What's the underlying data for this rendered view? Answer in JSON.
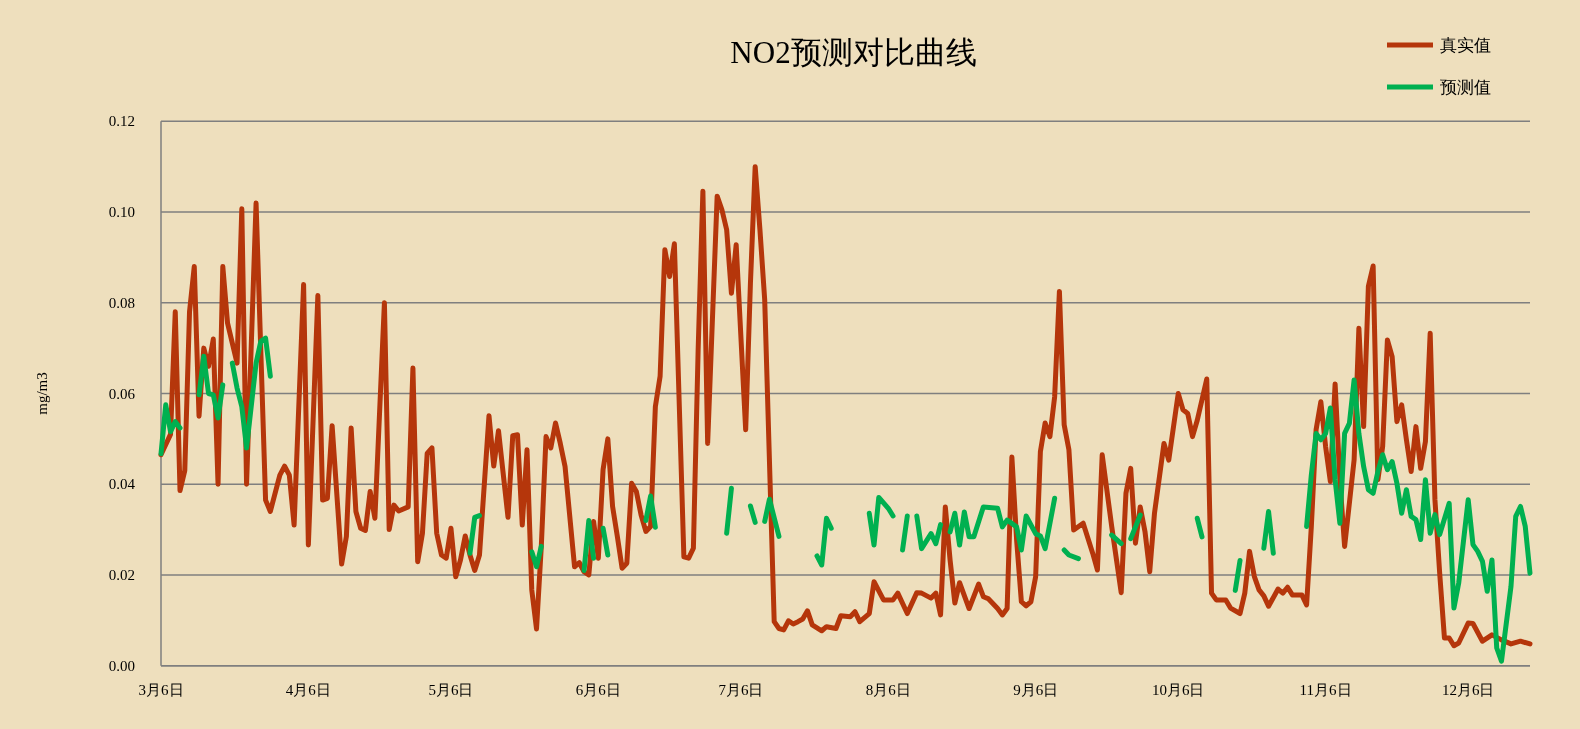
{
  "chart_data": {
    "type": "line",
    "title": "NO2预测对比曲线",
    "ylabel": "mg/m3",
    "grid": "y",
    "legend": "top right",
    "xlim": [
      "--03-06",
      "--12-19"
    ],
    "xticks": [
      {
        "value": "--03-06",
        "label": "3月6日"
      },
      {
        "value": "--04-06",
        "label": "4月6日"
      },
      {
        "value": "--05-06",
        "label": "5月6日"
      },
      {
        "value": "--06-06",
        "label": "6月6日"
      },
      {
        "value": "--07-06",
        "label": "7月6日"
      },
      {
        "value": "--08-06",
        "label": "8月6日"
      },
      {
        "value": "--09-06",
        "label": "9月6日"
      },
      {
        "value": "--10-06",
        "label": "10月6日"
      },
      {
        "value": "--11-06",
        "label": "11月6日"
      },
      {
        "value": "--12-06",
        "label": "12月6日"
      }
    ],
    "ylim": [
      0,
      0.12
    ],
    "yticks": [
      {
        "value": 0,
        "label": "0.00"
      },
      {
        "value": 0.02,
        "label": "0.02"
      },
      {
        "value": 0.04,
        "label": "0.04"
      },
      {
        "value": 0.06,
        "label": "0.06"
      },
      {
        "value": 0.08,
        "label": "0.08"
      },
      {
        "value": 0.1,
        "label": "0.10"
      },
      {
        "value": 0.12,
        "label": "0.12"
      }
    ],
    "series": [
      {
        "name": "真实值",
        "color": "#b5360b",
        "x": [
          "--03-06",
          "--03-08",
          "--03-09",
          "--03-10",
          "--03-11",
          "--03-12",
          "--03-13",
          "--03-14",
          "--03-15",
          "--03-16",
          "--03-17",
          "--03-18",
          "--03-19",
          "--03-20",
          "--03-22",
          "--03-23",
          "--03-24",
          "--03-26",
          "--03-28",
          "--03-29",
          "--03-31",
          "--04-01",
          "--04-02",
          "--04-03",
          "--04-05",
          "--04-06",
          "--04-08",
          "--04-09",
          "--04-10",
          "--04-11",
          "--04-13",
          "--04-14",
          "--04-15",
          "--04-16",
          "--04-17",
          "--04-18",
          "--04-19",
          "--04-20",
          "--04-22",
          "--04-23",
          "--04-24",
          "--04-25",
          "--04-27",
          "--04-28",
          "--04-29",
          "--04-30",
          "--05-01",
          "--05-02",
          "--05-03",
          "--05-04",
          "--05-05",
          "--05-06",
          "--05-07",
          "--05-08",
          "--05-09",
          "--05-10",
          "--05-11",
          "--05-12",
          "--05-14",
          "--05-15",
          "--05-16",
          "--05-18",
          "--05-19",
          "--05-20",
          "--05-21",
          "--05-22",
          "--05-23",
          "--05-24",
          "--05-25",
          "--05-26",
          "--05-27",
          "--05-28",
          "--05-29",
          "--05-30",
          "--06-01",
          "--06-02",
          "--06-03",
          "--06-04",
          "--06-05",
          "--06-06",
          "--06-07",
          "--06-08",
          "--06-09",
          "--06-10",
          "--06-11",
          "--06-12",
          "--06-13",
          "--06-14",
          "--06-15",
          "--06-16",
          "--06-17",
          "--06-18",
          "--06-19",
          "--06-20",
          "--06-21",
          "--06-22",
          "--06-24",
          "--06-25",
          "--06-26",
          "--06-27",
          "--06-28",
          "--06-29",
          "--07-01",
          "--07-02",
          "--07-03",
          "--07-04",
          "--07-05",
          "--07-07",
          "--07-08",
          "--07-09",
          "--07-10",
          "--07-11",
          "--07-13",
          "--07-14",
          "--07-15",
          "--07-16",
          "--07-17",
          "--07-18",
          "--07-19",
          "--07-20",
          "--07-21",
          "--07-23",
          "--07-24",
          "--07-26",
          "--07-27",
          "--07-29",
          "--07-30",
          "--07-31",
          "--08-02",
          "--08-03",
          "--08-05",
          "--08-07",
          "--08-08",
          "--08-10",
          "--08-12",
          "--08-13",
          "--08-15",
          "--08-16",
          "--08-17",
          "--08-18",
          "--08-19",
          "--08-20",
          "--08-21",
          "--08-23",
          "--08-25",
          "--08-26",
          "--08-27",
          "--08-29",
          "--08-30",
          "--08-31",
          "--09-01",
          "--09-02",
          "--09-03",
          "--09-04",
          "--09-05",
          "--09-06",
          "--09-07",
          "--09-08",
          "--09-09",
          "--09-10",
          "--09-11",
          "--09-12",
          "--09-13",
          "--09-14",
          "--09-16",
          "--09-18",
          "--09-19",
          "--09-20",
          "--09-22",
          "--09-24",
          "--09-25",
          "--09-26",
          "--09-27",
          "--09-28",
          "--09-29",
          "--09-30",
          "--10-01",
          "--10-03",
          "--10-04",
          "--10-06",
          "--10-07",
          "--10-08",
          "--10-09",
          "--10-10",
          "--10-12",
          "--10-13",
          "--10-14",
          "--10-16",
          "--10-17",
          "--10-19",
          "--10-20",
          "--10-21",
          "--10-22",
          "--10-23",
          "--10-24",
          "--10-25",
          "--10-27",
          "--10-28",
          "--10-29",
          "--10-30",
          "--11-01",
          "--11-02",
          "--11-03",
          "--11-04",
          "--11-05",
          "--11-06",
          "--11-07",
          "--11-08",
          "--11-09",
          "--11-10",
          "--11-11",
          "--11-12",
          "--11-13",
          "--11-14",
          "--11-15",
          "--11-16",
          "--11-17",
          "--11-18",
          "--11-19",
          "--11-20",
          "--11-21",
          "--11-22",
          "--11-23",
          "--11-24",
          "--11-25",
          "--11-26",
          "--11-27",
          "--11-28",
          "--11-29",
          "--11-30",
          "--12-01",
          "--12-02",
          "--12-03",
          "--12-04",
          "--12-06",
          "--12-07",
          "--12-09",
          "--12-11",
          "--12-13",
          "--12-15",
          "--12-17",
          "--12-19"
        ],
        "values": [
          0.0465,
          0.051,
          0.078,
          0.0386,
          0.043,
          0.078,
          0.088,
          0.055,
          0.07,
          0.066,
          0.072,
          0.04,
          0.088,
          0.0755,
          0.0667,
          0.1007,
          0.04,
          0.102,
          0.0365,
          0.034,
          0.042,
          0.044,
          0.042,
          0.031,
          0.084,
          0.0266,
          0.0816,
          0.0365,
          0.0369,
          0.0529,
          0.0224,
          0.0285,
          0.0524,
          0.034,
          0.0303,
          0.0298,
          0.0384,
          0.0325,
          0.08,
          0.03,
          0.0354,
          0.0341,
          0.035,
          0.0656,
          0.0229,
          0.0292,
          0.0468,
          0.048,
          0.0292,
          0.0244,
          0.0237,
          0.0303,
          0.0196,
          0.0233,
          0.0286,
          0.0244,
          0.021,
          0.0244,
          0.0551,
          0.044,
          0.0518,
          0.0327,
          0.0507,
          0.0509,
          0.031,
          0.0476,
          0.0167,
          0.0081,
          0.0262,
          0.0505,
          0.048,
          0.0535,
          0.049,
          0.0439,
          0.0218,
          0.0227,
          0.0207,
          0.02,
          0.0318,
          0.0237,
          0.0432,
          0.05,
          0.0351,
          0.0285,
          0.0215,
          0.0226,
          0.0402,
          0.0384,
          0.0332,
          0.0296,
          0.0307,
          0.0571,
          0.0638,
          0.0917,
          0.0858,
          0.093,
          0.024,
          0.0237,
          0.0259,
          0.0696,
          0.1046,
          0.049,
          0.1035,
          0.1005,
          0.0961,
          0.0821,
          0.0928,
          0.052,
          0.0843,
          0.11,
          0.0961,
          0.0807,
          0.0097,
          0.0082,
          0.0079,
          0.0099,
          0.0092,
          0.0097,
          0.0103,
          0.0121,
          0.009,
          0.0077,
          0.0086,
          0.0082,
          0.011,
          0.0108,
          0.0119,
          0.0097,
          0.0115,
          0.0185,
          0.0145,
          0.0145,
          0.016,
          0.0115,
          0.0161,
          0.016,
          0.0149,
          0.016,
          0.0112,
          0.035,
          0.0233,
          0.0138,
          0.0183,
          0.0126,
          0.018,
          0.0152,
          0.0148,
          0.0126,
          0.0112,
          0.0126,
          0.046,
          0.0277,
          0.0141,
          0.0132,
          0.0141,
          0.0196,
          0.0472,
          0.0535,
          0.0505,
          0.0593,
          0.0825,
          0.0531,
          0.0476,
          0.0299,
          0.0314,
          0.0248,
          0.0211,
          0.0465,
          0.0307,
          0.0161,
          0.038,
          0.0435,
          0.027,
          0.035,
          0.0296,
          0.0207,
          0.0336,
          0.049,
          0.0453,
          0.06,
          0.0564,
          0.0556,
          0.0505,
          0.0541,
          0.0632,
          0.016,
          0.0145,
          0.0145,
          0.0127,
          0.0115,
          0.016,
          0.0252,
          0.0197,
          0.0167,
          0.0154,
          0.0131,
          0.0169,
          0.016,
          0.0173,
          0.0156,
          0.0156,
          0.0134,
          0.0307,
          0.052,
          0.0582,
          0.0483,
          0.0406,
          0.0621,
          0.041,
          0.0263,
          0.0358,
          0.0454,
          0.0744,
          0.0527,
          0.0836,
          0.0881,
          0.041,
          0.0483,
          0.0718,
          0.0681,
          0.0538,
          0.0575,
          0.0498,
          0.0428,
          0.0527,
          0.0435,
          0.0494,
          0.0733,
          0.0366,
          0.0204,
          0.0061,
          0.0061,
          0.0044,
          0.005,
          0.0094,
          0.0093,
          0.0054,
          0.0068,
          0.0057,
          0.0048,
          0.0054,
          0.0048
        ]
      },
      {
        "name": "预测值",
        "color": "#00b050",
        "x": [
          "--03-06",
          "--03-07",
          "--03-08",
          "--03-09",
          "--03-10",
          "--03-11",
          "--03-14",
          "--03-15",
          "--03-16",
          "--03-17",
          "--03-18",
          "--03-19",
          "--03-20",
          "--03-21",
          "--03-22",
          "--03-23",
          "--03-24",
          "--03-26",
          "--03-27",
          "--03-28",
          "--03-29",
          "--03-30",
          "--05-10",
          "--05-11",
          "--05-12",
          "--05-13",
          "--05-23",
          "--05-24",
          "--05-25",
          "--05-26",
          "--06-03",
          "--06-04",
          "--06-05",
          "--06-06",
          "--06-07",
          "--06-08",
          "--06-09",
          "--06-16",
          "--06-17",
          "--06-18",
          "--06-19",
          "--07-03",
          "--07-04",
          "--07-05",
          "--07-08",
          "--07-09",
          "--07-10",
          "--07-11",
          "--07-12",
          "--07-14",
          "--07-15",
          "--07-22",
          "--07-23",
          "--07-24",
          "--07-25",
          "--07-26",
          "--08-02",
          "--08-03",
          "--08-04",
          "--08-06",
          "--08-07",
          "--08-08",
          "--08-09",
          "--08-10",
          "--08-11",
          "--08-12",
          "--08-13",
          "--08-15",
          "--08-16",
          "--08-17",
          "--08-18",
          "--08-19",
          "--08-20",
          "--08-21",
          "--08-22",
          "--08-23",
          "--08-24",
          "--08-26",
          "--08-29",
          "--08-30",
          "--08-31",
          "--09-02",
          "--09-03",
          "--09-04",
          "--09-06",
          "--09-07",
          "--09-08",
          "--09-10",
          "--09-11",
          "--09-12",
          "--09-13",
          "--09-15",
          "--09-16",
          "--09-22",
          "--09-24",
          "--09-25",
          "--09-26",
          "--09-28",
          "--09-29",
          "--10-10",
          "--10-11",
          "--10-12",
          "--10-18",
          "--10-19",
          "--10-20",
          "--10-24",
          "--10-25",
          "--10-26",
          "--10-27",
          "--11-02",
          "--11-03",
          "--11-04",
          "--11-05",
          "--11-06",
          "--11-07",
          "--11-08",
          "--11-09",
          "--11-10",
          "--11-11",
          "--11-12",
          "--11-13",
          "--11-14",
          "--11-15",
          "--11-16",
          "--11-17",
          "--11-18",
          "--11-19",
          "--11-20",
          "--11-21",
          "--11-22",
          "--11-23",
          "--11-24",
          "--11-25",
          "--11-26",
          "--11-27",
          "--11-28",
          "--11-29",
          "--11-30",
          "--12-02",
          "--12-03",
          "--12-04",
          "--12-06",
          "--12-07",
          "--12-08",
          "--12-09",
          "--12-10",
          "--12-11",
          "--12-12",
          "--12-13",
          "--12-15",
          "--12-16",
          "--12-17",
          "--12-18",
          "--12-19"
        ],
        "values": [
          0.0467,
          0.0575,
          0.0516,
          0.0538,
          0.0524,
          null,
          0.0597,
          0.0682,
          0.06,
          0.0597,
          0.0546,
          0.0619,
          null,
          0.0667,
          0.0612,
          0.0571,
          0.048,
          0.0667,
          0.0715,
          0.0722,
          0.0638,
          null,
          0.0248,
          0.0327,
          0.0331,
          null,
          0.0251,
          0.0218,
          0.0263,
          null,
          0.021,
          0.032,
          0.0237,
          null,
          0.0303,
          0.0244,
          null,
          0.032,
          0.0374,
          0.0305,
          null,
          0.0292,
          0.0391,
          null,
          0.0352,
          0.0316,
          null,
          0.0318,
          0.0367,
          0.0285,
          null,
          0.0242,
          0.0222,
          0.0325,
          0.0303,
          null,
          0.0336,
          0.0266,
          0.0371,
          0.0347,
          0.033,
          null,
          0.0255,
          0.033,
          null,
          0.033,
          0.0258,
          0.0291,
          0.0269,
          0.0311,
          null,
          0.0295,
          0.0336,
          0.0266,
          0.0339,
          0.0284,
          0.0284,
          0.035,
          0.0347,
          0.0306,
          0.0321,
          0.0306,
          0.0255,
          0.033,
          0.0291,
          0.0286,
          0.0258,
          0.0369,
          null,
          0.0255,
          0.0244,
          0.0236,
          null,
          0.0288,
          0.0269,
          null,
          0.028,
          0.0332,
          null,
          0.0325,
          0.0284,
          null,
          0.0166,
          0.0232,
          null,
          0.0259,
          0.034,
          0.0248,
          null,
          0.0307,
          0.0421,
          0.0512,
          0.0498,
          0.0512,
          0.0568,
          0.041,
          0.0314,
          0.0512,
          0.0534,
          0.063,
          0.0512,
          0.0439,
          0.0388,
          0.038,
          0.0428,
          0.0465,
          0.0432,
          0.045,
          0.0402,
          0.0336,
          0.0388,
          0.0329,
          0.0322,
          0.0278,
          0.041,
          0.0292,
          0.0333,
          0.0289,
          0.0358,
          0.0127,
          0.0182,
          0.0366,
          0.0267,
          0.0252,
          0.023,
          0.0164,
          0.0233,
          0.0039,
          0.001,
          0.0175,
          0.0329,
          0.0351,
          0.0307,
          0.0204
        ]
      }
    ]
  }
}
